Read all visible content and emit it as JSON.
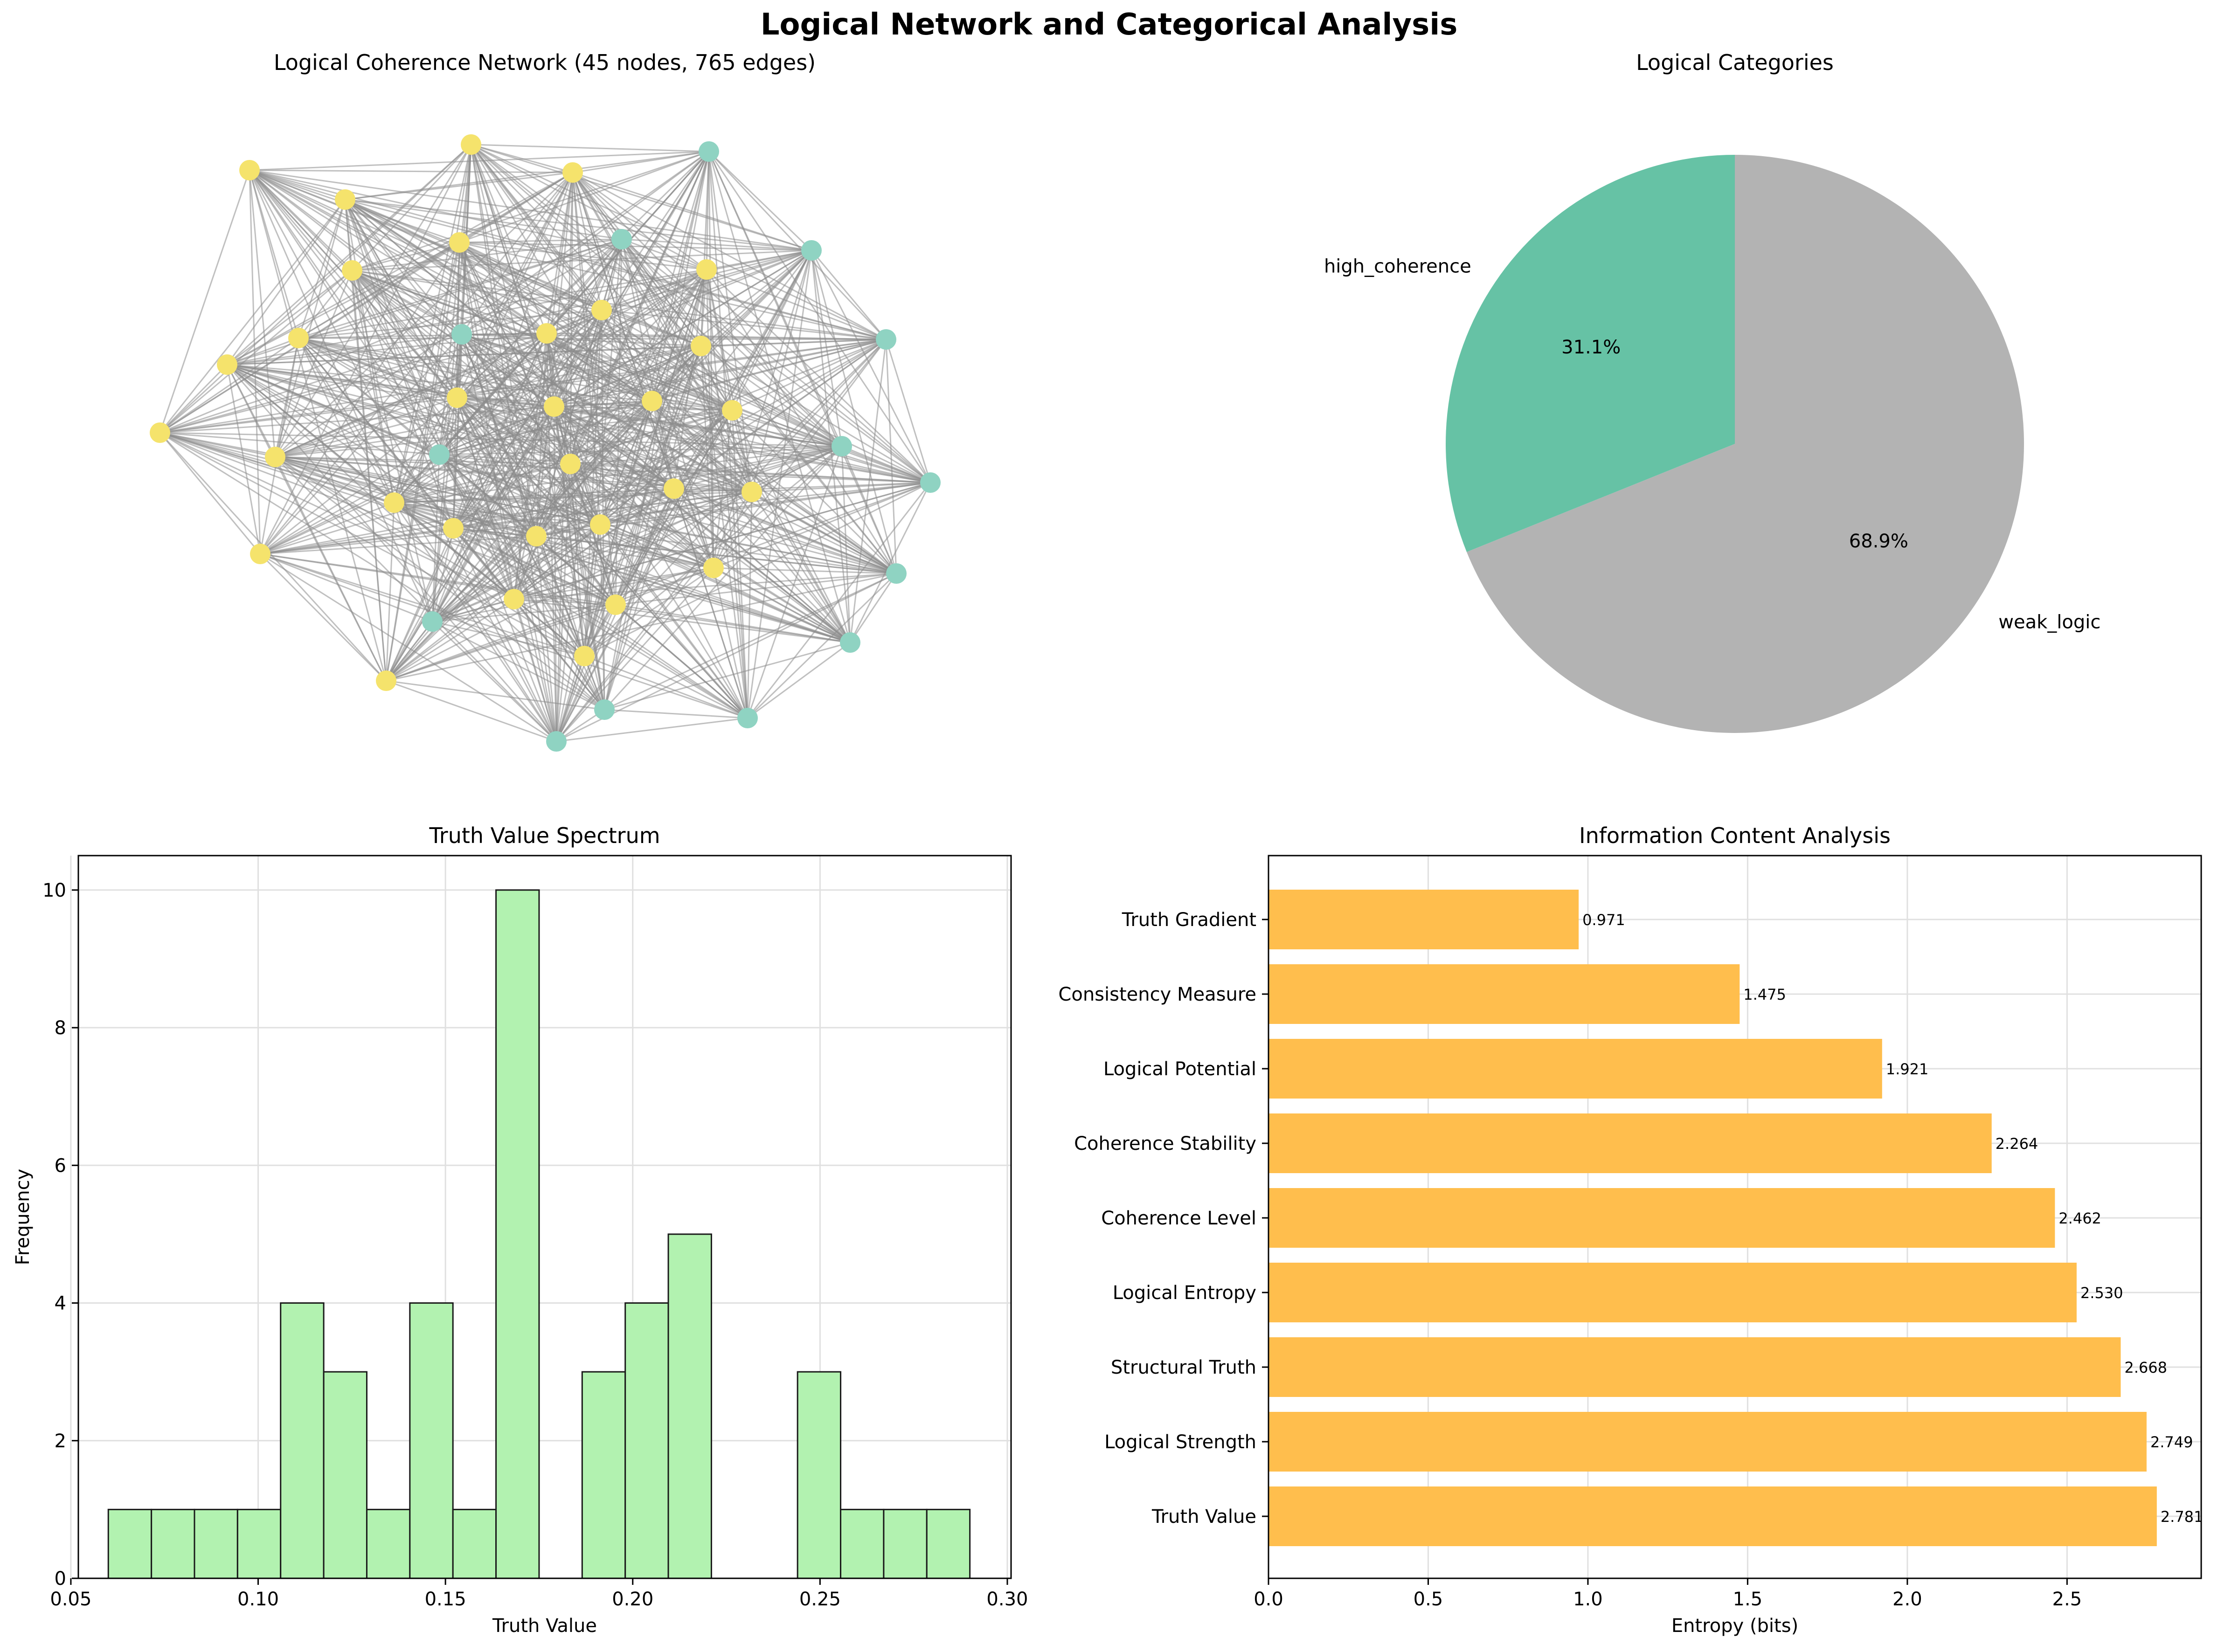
{
  "figure": {
    "title": "Logical Network and Categorical Analysis"
  },
  "colors": {
    "node_high": "#8fd3c2",
    "node_weak": "#f5e36c",
    "edge": "#8c8c8c",
    "pie_high": "#66c2a5",
    "pie_weak": "#b3b3b3",
    "hist": "#b2f2b0",
    "bar": "#ffbe4d",
    "grid": "#e0e0e0"
  },
  "chart_data": [
    {
      "type": "network",
      "title": "Logical Coherence Network (45 nodes, 765 edges)",
      "node_count": 45,
      "edge_count": 765,
      "categories": [
        "high_coherence",
        "weak_logic"
      ],
      "category_counts": [
        14,
        31
      ]
    },
    {
      "type": "pie",
      "title": "Logical Categories",
      "labels": [
        "high_coherence",
        "weak_logic"
      ],
      "values": [
        31.1,
        68.9
      ],
      "pct_labels": [
        "31.1%",
        "68.9%"
      ]
    },
    {
      "type": "bar",
      "subtype": "histogram",
      "title": "Truth Value Spectrum",
      "xlabel": "Truth Value",
      "ylabel": "Frequency",
      "bin_edges": [
        0.06,
        0.0715,
        0.083,
        0.0945,
        0.106,
        0.1175,
        0.129,
        0.1405,
        0.152,
        0.1635,
        0.175,
        0.1865,
        0.198,
        0.2095,
        0.221,
        0.2325,
        0.244,
        0.2555,
        0.267,
        0.2785,
        0.29
      ],
      "counts": [
        1,
        1,
        1,
        1,
        4,
        3,
        1,
        4,
        1,
        10,
        0,
        3,
        4,
        5,
        0,
        0,
        3,
        1,
        1,
        1
      ],
      "xlim": [
        0.052,
        0.301
      ],
      "ylim": [
        0,
        10.5
      ],
      "xticks": [
        "0.05",
        "0.10",
        "0.15",
        "0.20",
        "0.25",
        "0.30"
      ],
      "yticks": [
        "0",
        "2",
        "4",
        "6",
        "8",
        "10"
      ],
      "grid": true
    },
    {
      "type": "bar",
      "orientation": "horizontal",
      "title": "Information Content Analysis",
      "xlabel": "Entropy (bits)",
      "categories": [
        "Truth Value",
        "Logical Strength",
        "Structural Truth",
        "Logical Entropy",
        "Coherence Level",
        "Coherence Stability",
        "Logical Potential",
        "Consistency Measure",
        "Truth Gradient"
      ],
      "values": [
        2.781,
        2.749,
        2.668,
        2.53,
        2.462,
        2.264,
        1.921,
        1.475,
        0.971
      ],
      "value_labels": [
        "2.781",
        "2.749",
        "2.668",
        "2.530",
        "2.462",
        "2.264",
        "1.921",
        "1.475",
        "0.971"
      ],
      "xlim": [
        0,
        2.92
      ],
      "xticks": [
        "0.0",
        "0.5",
        "1.0",
        "1.5",
        "2.0",
        "2.5"
      ],
      "grid": true
    }
  ]
}
